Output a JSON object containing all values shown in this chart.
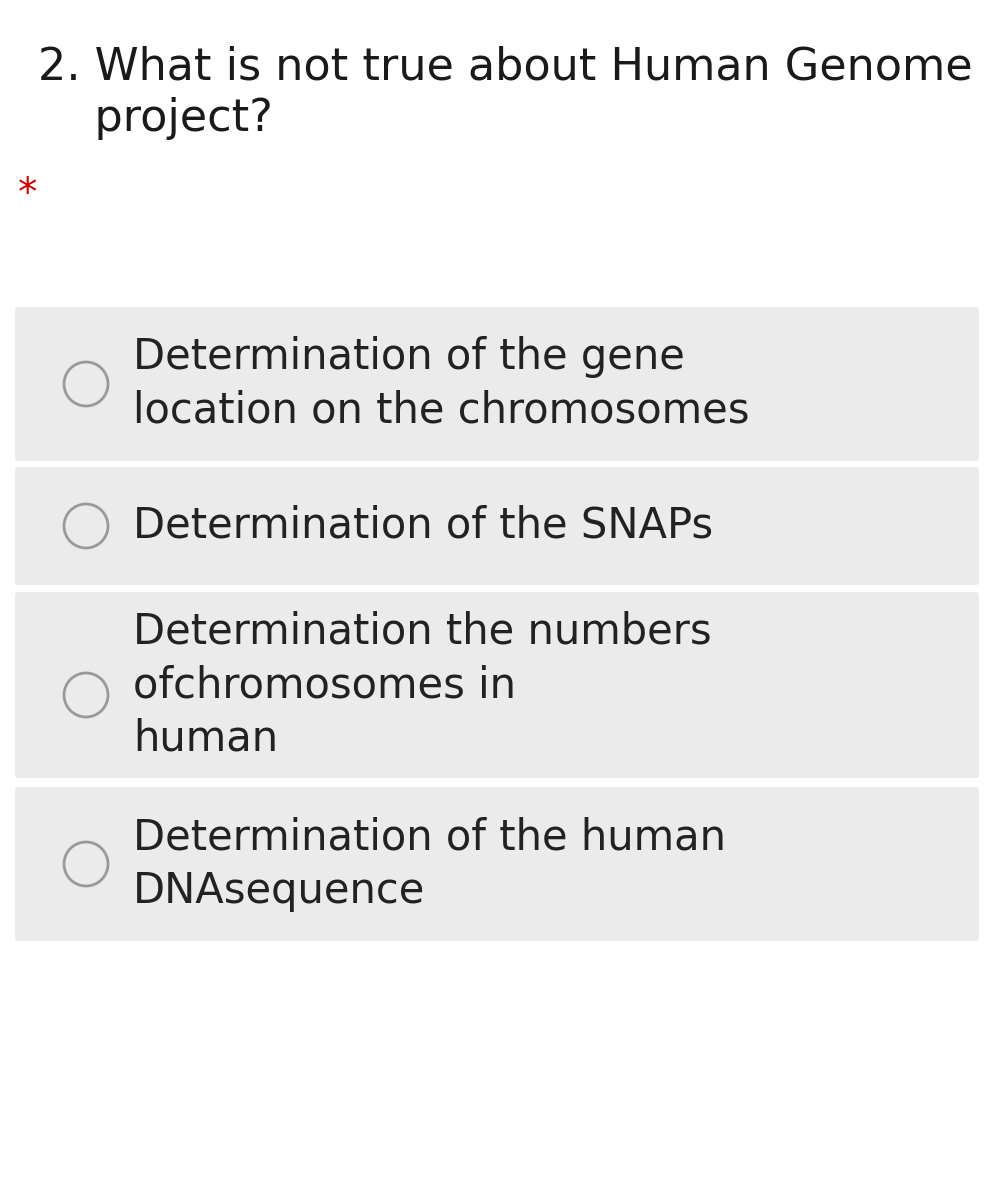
{
  "background_color": "#ffffff",
  "question_line1": "2. What is not true about Human Genome",
  "question_line2": "    project?",
  "required_marker": "*",
  "required_color": "#cc0000",
  "question_fontsize": 32,
  "asterisk_fontsize": 28,
  "question_color": "#1a1a1a",
  "option_box_color": "#ebebeb",
  "option_text_color": "#222222",
  "option_fontsize": 30,
  "circle_edge_color": "#999999",
  "circle_lw": 2.0,
  "options": [
    "Determination of the gene\nlocation on the chromosomes",
    "Determination of the SNAPs",
    "Determination the numbers\nofchromosomes in\nhuman",
    "Determination of the human\nDNAsequence"
  ],
  "fig_width": 9.94,
  "fig_height": 12.0,
  "dpi": 100
}
